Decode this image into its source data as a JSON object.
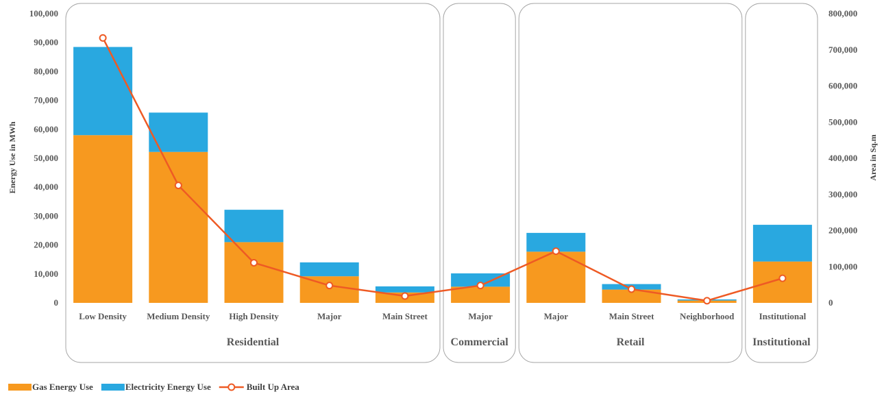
{
  "chart_data": {
    "type": "bar",
    "stacked": true,
    "categories": [
      "Low Density",
      "Medium Density",
      "High Density",
      "Major",
      "Main Street",
      "Major",
      "Major",
      "Main Street",
      "Neighborhood",
      "Institutional"
    ],
    "groups": [
      {
        "label": "Residential",
        "categories": 5
      },
      {
        "label": "Commercial",
        "categories": 1
      },
      {
        "label": "Retail",
        "categories": 3
      },
      {
        "label": "Institutional",
        "categories": 1
      }
    ],
    "series": [
      {
        "name": "Gas Energy Use",
        "axis": "left",
        "color": "#F7991F",
        "values": [
          58000,
          52200,
          21000,
          9200,
          3600,
          5600,
          17700,
          4600,
          800,
          14300
        ]
      },
      {
        "name": "Electricity Energy Use",
        "axis": "left",
        "color": "#29A8E0",
        "values": [
          30500,
          13600,
          11200,
          4800,
          2100,
          4600,
          6500,
          1900,
          400,
          12700
        ]
      },
      {
        "name": "Built Up Area",
        "axis": "right",
        "type": "line",
        "color": "#EE5A24",
        "values": [
          733000,
          325000,
          111000,
          48000,
          19000,
          48000,
          143000,
          38000,
          6000,
          68000
        ]
      }
    ],
    "ylabel": "Energy Use in MWh",
    "y2label": "Area in Sq.m",
    "ylim": [
      0,
      100000
    ],
    "y2lim": [
      0,
      800000
    ],
    "yticks": [
      "0",
      "10,000",
      "20,000",
      "30,000",
      "40,000",
      "50,000",
      "60,000",
      "70,000",
      "80,000",
      "90,000",
      "100,000"
    ],
    "y2ticks": [
      "0",
      "100,000",
      "200,000",
      "300,000",
      "400,000",
      "500,000",
      "600,000",
      "700,000",
      "800,000"
    ],
    "legend": "bottom-left",
    "grid": false
  }
}
